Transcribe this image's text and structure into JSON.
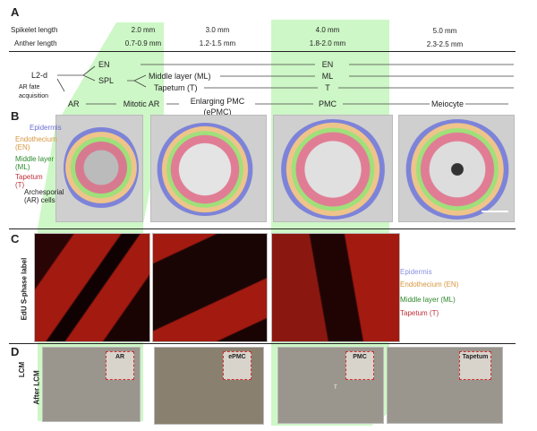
{
  "panels": {
    "a": "A",
    "b": "B",
    "c": "C",
    "d": "D"
  },
  "stage_table": {
    "row_labels": [
      "Spikelet length",
      "Anther  length"
    ],
    "spikelet": [
      "2.0 mm",
      "3.0 mm",
      "4.0 mm",
      "5.0 mm"
    ],
    "anther": [
      "0.7-0.9 mm",
      "1.2-1.5 mm",
      "1.8-2.0 mm",
      "2.3-2.5 mm"
    ]
  },
  "lineage": {
    "l2d": "L2-d",
    "ar_fate": "AR fate",
    "acquisition": "acquisition",
    "en": "EN",
    "spl": "SPL",
    "ml": "Middle layer (ML)",
    "t": "Tapetum (T)",
    "ar": "AR",
    "mitotic_ar": "Mitotic AR",
    "eppmc1": "Enlarging PMC",
    "eppmc2": "(ePMC)",
    "pmc": "PMC",
    "meiocyte": "Meiocyte",
    "en_r": "EN",
    "ml_r": "ML",
    "t_r": "T"
  },
  "b_labels": {
    "epidermis": "Epidermis",
    "endothecium": "Endothecium",
    "en": "(EN)",
    "ml1": "Middle layer",
    "ml2": "(ML)",
    "tap": "Tapetum",
    "t": "(T)",
    "ar1": "Archesporial",
    "ar2": "(AR) cells"
  },
  "c_labels": {
    "ylabel": "EdU S-phase label",
    "epidermis": "Epidermis",
    "endothecium": "Endothecium (EN)",
    "ml": "Middle layer (ML)",
    "tap": "Tapetum (T)"
  },
  "d_labels": {
    "lcm": "LCM",
    "after": "After  LCM",
    "ar": "AR",
    "epmc": "ePMC",
    "pmc": "PMC",
    "t": "T",
    "tapetum": "Tapetum"
  },
  "colors": {
    "highlight": "#c9f5c3",
    "epidermis": "#7b7fd6",
    "endothecium": "#e0a050",
    "middle_layer": "#2e9a2e",
    "tapetum": "#c0303a"
  }
}
